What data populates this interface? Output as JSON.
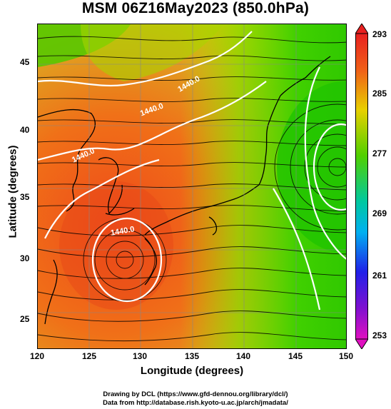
{
  "title": "MSM 06Z16May2023 (850.0hPa)",
  "xaxis": {
    "label": "Longitude (degrees)",
    "ticks": [
      "120",
      "125",
      "130",
      "135",
      "140",
      "145",
      "150"
    ]
  },
  "yaxis": {
    "label": "Latitude  (degrees)",
    "ticks": [
      "45",
      "40",
      "35",
      "30",
      "25"
    ]
  },
  "colorbar": {
    "ticks": [
      "293",
      "285",
      "277",
      "269",
      "261",
      "253"
    ]
  },
  "contours": [
    "1440.0",
    "1440.0",
    "1440.0",
    "1440.0"
  ],
  "credits": [
    "Drawing by DCL (https://www.gfd-dennou.org/library/dcl/)",
    "Data from http://database.rish.kyoto-u.ac.jp/arch/jmadata/"
  ],
  "colors": {
    "warm": "#e8401c",
    "mid": "#c8d800",
    "cool": "#32d800"
  }
}
